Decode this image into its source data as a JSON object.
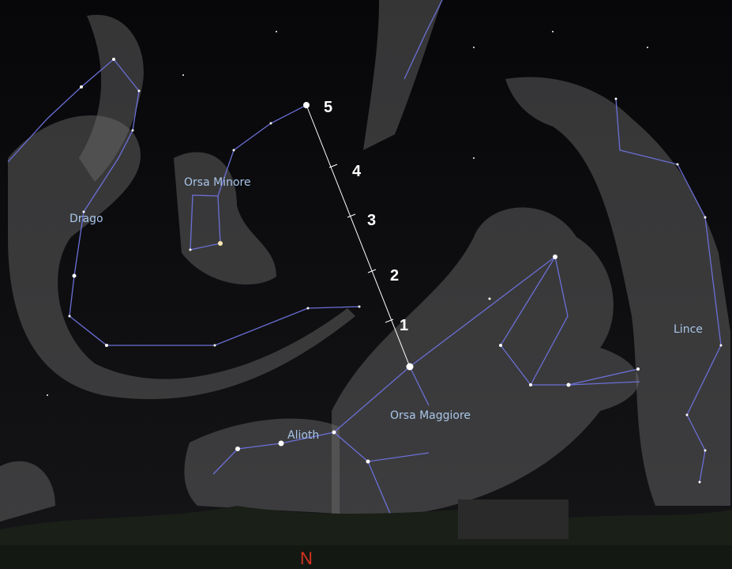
{
  "constellations": [
    {
      "name": "Drago"
    },
    {
      "name": "Orsa Minore"
    },
    {
      "name": "Orsa Maggiore"
    },
    {
      "name": "Lince"
    }
  ],
  "stars": [
    {
      "name": "Alioth"
    }
  ],
  "scale_labels": [
    "5",
    "4",
    "3",
    "2",
    "1"
  ],
  "compass": "N"
}
